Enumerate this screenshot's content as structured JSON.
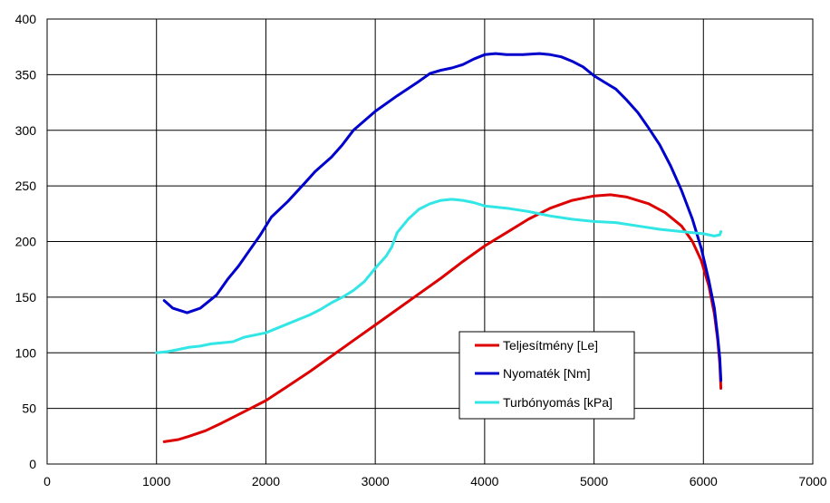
{
  "chart_data": {
    "type": "line",
    "title": "",
    "xlabel": "",
    "ylabel": "",
    "xlim": [
      0,
      7000
    ],
    "ylim": [
      0,
      400
    ],
    "x_ticks": [
      0,
      1000,
      2000,
      3000,
      4000,
      5000,
      6000,
      7000
    ],
    "y_ticks": [
      0,
      50,
      100,
      150,
      200,
      250,
      300,
      350,
      400
    ],
    "grid": true,
    "legend_position": "bottom-right inside plot",
    "series": [
      {
        "name": "Teljesítmény [Le]",
        "color": "#dd0000",
        "points": [
          [
            1070,
            20
          ],
          [
            1200,
            22
          ],
          [
            1300,
            25
          ],
          [
            1450,
            30
          ],
          [
            1600,
            37
          ],
          [
            1800,
            47
          ],
          [
            2000,
            57
          ],
          [
            2200,
            70
          ],
          [
            2400,
            83
          ],
          [
            2600,
            97
          ],
          [
            2800,
            111
          ],
          [
            3000,
            125
          ],
          [
            3200,
            139
          ],
          [
            3400,
            153
          ],
          [
            3600,
            167
          ],
          [
            3800,
            182
          ],
          [
            4000,
            196
          ],
          [
            4200,
            208
          ],
          [
            4400,
            220
          ],
          [
            4600,
            230
          ],
          [
            4800,
            237
          ],
          [
            5000,
            241
          ],
          [
            5150,
            242
          ],
          [
            5300,
            240
          ],
          [
            5500,
            234
          ],
          [
            5650,
            226
          ],
          [
            5800,
            214
          ],
          [
            5900,
            200
          ],
          [
            5980,
            183
          ],
          [
            6050,
            160
          ],
          [
            6100,
            135
          ],
          [
            6130,
            112
          ],
          [
            6150,
            90
          ],
          [
            6160,
            68
          ]
        ]
      },
      {
        "name": "Nyomaték [Nm]",
        "color": "#0000cc",
        "points": [
          [
            1070,
            147
          ],
          [
            1150,
            140
          ],
          [
            1280,
            136
          ],
          [
            1400,
            140
          ],
          [
            1550,
            152
          ],
          [
            1650,
            166
          ],
          [
            1750,
            178
          ],
          [
            1850,
            192
          ],
          [
            1950,
            206
          ],
          [
            2050,
            222
          ],
          [
            2200,
            236
          ],
          [
            2350,
            252
          ],
          [
            2450,
            263
          ],
          [
            2600,
            276
          ],
          [
            2700,
            287
          ],
          [
            2800,
            300
          ],
          [
            3000,
            317
          ],
          [
            3200,
            331
          ],
          [
            3400,
            344
          ],
          [
            3500,
            351
          ],
          [
            3600,
            354
          ],
          [
            3700,
            356
          ],
          [
            3800,
            359
          ],
          [
            3900,
            364
          ],
          [
            4000,
            368
          ],
          [
            4100,
            369
          ],
          [
            4200,
            368
          ],
          [
            4350,
            368
          ],
          [
            4500,
            369
          ],
          [
            4600,
            368
          ],
          [
            4700,
            366
          ],
          [
            4800,
            362
          ],
          [
            4900,
            357
          ],
          [
            5000,
            349
          ],
          [
            5100,
            343
          ],
          [
            5200,
            337
          ],
          [
            5300,
            327
          ],
          [
            5400,
            316
          ],
          [
            5500,
            302
          ],
          [
            5600,
            287
          ],
          [
            5700,
            268
          ],
          [
            5800,
            246
          ],
          [
            5900,
            220
          ],
          [
            5980,
            194
          ],
          [
            6050,
            165
          ],
          [
            6100,
            140
          ],
          [
            6130,
            115
          ],
          [
            6150,
            95
          ],
          [
            6160,
            75
          ]
        ]
      },
      {
        "name": "Turbónyomás [kPa]",
        "color": "#33e6e6",
        "points": [
          [
            1000,
            100
          ],
          [
            1100,
            101
          ],
          [
            1200,
            103
          ],
          [
            1300,
            105
          ],
          [
            1400,
            106
          ],
          [
            1500,
            108
          ],
          [
            1600,
            109
          ],
          [
            1700,
            110
          ],
          [
            1800,
            114
          ],
          [
            2000,
            118
          ],
          [
            2200,
            126
          ],
          [
            2400,
            134
          ],
          [
            2500,
            139
          ],
          [
            2600,
            145
          ],
          [
            2700,
            150
          ],
          [
            2800,
            156
          ],
          [
            2900,
            164
          ],
          [
            3000,
            176
          ],
          [
            3100,
            187
          ],
          [
            3150,
            195
          ],
          [
            3200,
            208
          ],
          [
            3300,
            220
          ],
          [
            3400,
            229
          ],
          [
            3500,
            234
          ],
          [
            3600,
            237
          ],
          [
            3700,
            238
          ],
          [
            3800,
            237
          ],
          [
            3900,
            235
          ],
          [
            4000,
            232
          ],
          [
            4200,
            230
          ],
          [
            4400,
            227
          ],
          [
            4600,
            223
          ],
          [
            4800,
            220
          ],
          [
            5000,
            218
          ],
          [
            5200,
            217
          ],
          [
            5400,
            214
          ],
          [
            5600,
            211
          ],
          [
            5800,
            209
          ],
          [
            6000,
            207
          ],
          [
            6100,
            205
          ],
          [
            6150,
            206
          ],
          [
            6160,
            209
          ]
        ]
      }
    ]
  }
}
